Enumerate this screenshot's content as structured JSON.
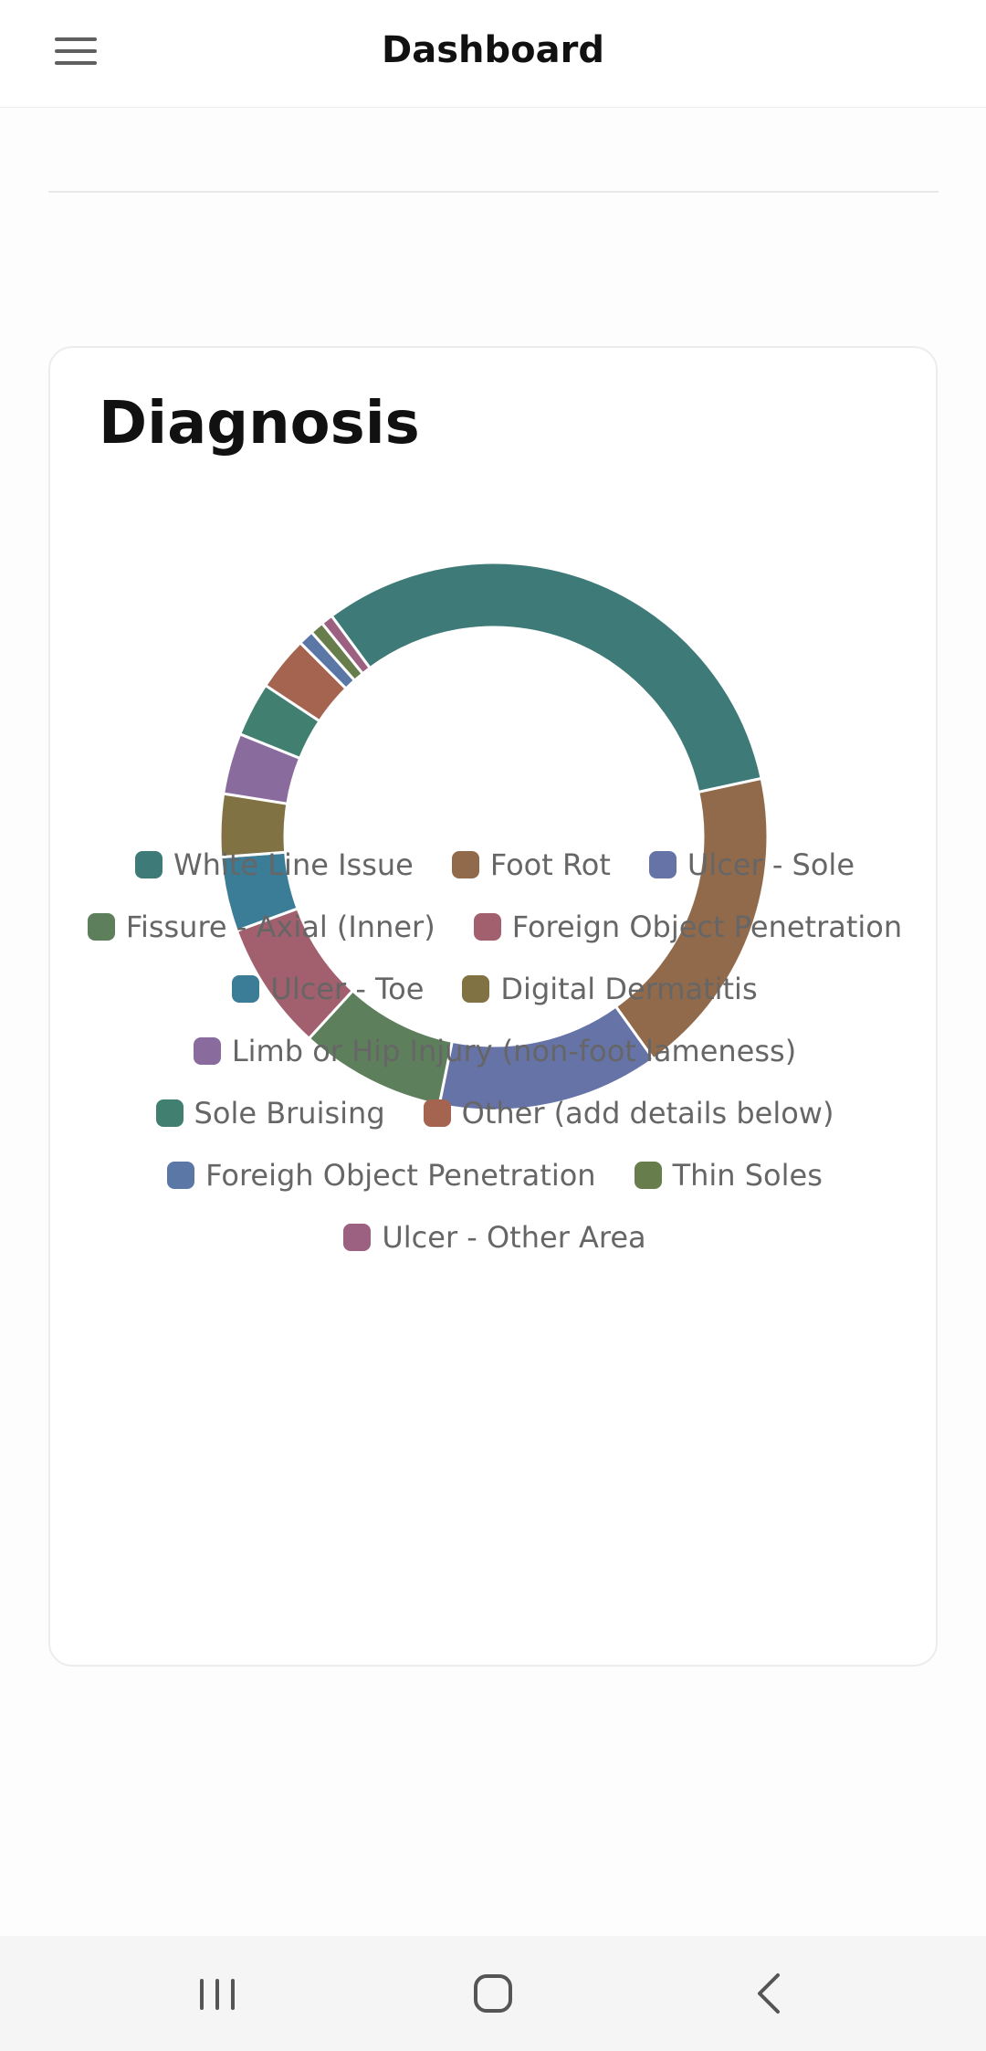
{
  "header": {
    "title": "Dashboard",
    "menu_icon": "hamburger-menu-icon"
  },
  "card": {
    "title": "Diagnosis"
  },
  "chart_data": {
    "type": "doughnut",
    "title": "Diagnosis",
    "legend_position": "bottom",
    "series": [
      {
        "name": "White Line Issue",
        "value": 31.7,
        "color": "#3d7a78"
      },
      {
        "name": "Foot Rot",
        "value": 18.5,
        "color": "#916a4c"
      },
      {
        "name": "Ulcer - Sole",
        "value": 13.1,
        "color": "#6673a6"
      },
      {
        "name": "Fissure - Axial (Inner)",
        "value": 8.6,
        "color": "#5e7f5b"
      },
      {
        "name": "Foreign Object Penetration",
        "value": 7.6,
        "color": "#a25f6d"
      },
      {
        "name": "Ulcer - Toe",
        "value": 4.4,
        "color": "#3b7d96"
      },
      {
        "name": "Digital Dermatitis",
        "value": 3.7,
        "color": "#807243"
      },
      {
        "name": "Limb or Hip Injury (non-foot lameness)",
        "value": 3.6,
        "color": "#8a6b9e"
      },
      {
        "name": "Sole Bruising",
        "value": 3.2,
        "color": "#417f70"
      },
      {
        "name": "Other (add details below)",
        "value": 3.2,
        "color": "#a5644f"
      },
      {
        "name": "Foreigh Object Penetration",
        "value": 0.9,
        "color": "#5a77a6"
      },
      {
        "name": "Thin Soles",
        "value": 0.8,
        "color": "#687d4c"
      },
      {
        "name": "Ulcer - Other Area",
        "value": 0.7,
        "color": "#9c6080"
      }
    ]
  },
  "nav": {
    "recent_icon": "recent-apps-icon",
    "home_icon": "home-icon",
    "back_icon": "back-icon"
  }
}
